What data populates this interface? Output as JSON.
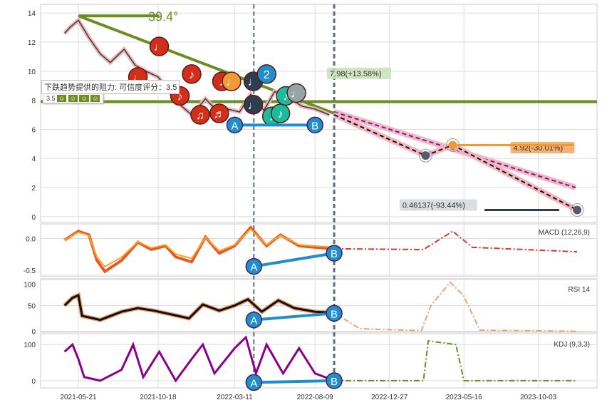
{
  "chart_data": {
    "type": "line",
    "title": "",
    "x_ticks": [
      "2021-05-21",
      "2021-10-18",
      "2022-03-11",
      "2022-08-09",
      "2022-12-27",
      "2023-05-16",
      "2023-10-03"
    ],
    "main": {
      "y_ticks": [
        0,
        2,
        4,
        6,
        8,
        10,
        12,
        14
      ],
      "ylim": [
        -0.4,
        14.6
      ],
      "price": [
        [
          "2021-04-25",
          12.6
        ],
        [
          "2021-05-05",
          13.0
        ],
        [
          "2021-05-21",
          13.5
        ],
        [
          "2021-06-10",
          12.3
        ],
        [
          "2021-07-01",
          11.2
        ],
        [
          "2021-07-20",
          10.6
        ],
        [
          "2021-08-15",
          11.5
        ],
        [
          "2021-09-05",
          10.4
        ],
        [
          "2021-09-25",
          10.0
        ],
        [
          "2021-10-18",
          9.6
        ],
        [
          "2021-11-10",
          8.5
        ],
        [
          "2021-12-01",
          7.6
        ],
        [
          "2021-12-20",
          7.0
        ],
        [
          "2022-01-15",
          8.1
        ],
        [
          "2022-02-05",
          7.3
        ],
        [
          "2022-02-25",
          7.4
        ],
        [
          "2022-03-20",
          7.2
        ],
        [
          "2022-04-10",
          8.4
        ],
        [
          "2022-05-05",
          7.3
        ],
        [
          "2022-05-25",
          8.6
        ],
        [
          "2022-06-20",
          8.2
        ],
        [
          "2022-07-15",
          7.6
        ],
        [
          "2022-08-09",
          7.4
        ],
        [
          "2022-09-05",
          7.0
        ]
      ],
      "projection": [
        [
          "2022-09-14",
          7.0
        ],
        [
          "2023-03-05",
          4.2
        ],
        [
          "2023-04-25",
          4.92
        ],
        [
          "2023-12-15",
          0.46
        ]
      ],
      "channel": [
        [
          "2022-09-14",
          7.2
        ],
        [
          "2023-12-12",
          2.0
        ]
      ],
      "trendline": [
        [
          "2021-05-21",
          13.8
        ],
        [
          "2022-09-14",
          7.1
        ]
      ],
      "resistance_level": 7.9,
      "top_line": [
        [
          "2021-05-21",
          13.8
        ],
        [
          "2021-10-20",
          13.8
        ]
      ],
      "angle_label": "39.4°",
      "annotations": [
        {
          "text": "7.98(+13.58%)",
          "date": "2022-09-14",
          "value": 9.8,
          "color": "#c7e2b5"
        },
        {
          "text": "4.92(-30.01%)",
          "date": "2023-12-10",
          "value": 4.7,
          "color": "#f5a55a"
        },
        {
          "text": "0.46137(-93.44%)",
          "date": "2023-01-15",
          "value": 0.75,
          "color": "#d5d8dc"
        }
      ],
      "tooltip": "下跌趋势提供的阻力: 可信度评分：3.5",
      "rating": "3.5",
      "notes": [
        [
          "2021-09-10",
          9.6,
          "#d22f1b",
          "♩"
        ],
        [
          "2021-10-20",
          11.7,
          "#d22f1b",
          "♩"
        ],
        [
          "2021-11-28",
          8.3,
          "#d22f1b",
          "♪"
        ],
        [
          "2021-12-20",
          9.8,
          "#d22f1b",
          "♪"
        ],
        [
          "2022-01-05",
          7.0,
          "#d22f1b",
          "♫"
        ],
        [
          "2022-02-10",
          7.1,
          "#d22f1b",
          "♬"
        ],
        [
          "2022-02-15",
          9.3,
          "#d22f1b",
          "♪"
        ],
        [
          "2022-03-05",
          9.3,
          "#f09a35",
          "♩"
        ],
        [
          "2022-04-15",
          9.3,
          "#2c3e50",
          "♩"
        ],
        [
          "2022-04-15",
          7.7,
          "#2c3e50",
          "♩"
        ],
        [
          "2022-05-10",
          9.8,
          "#1f8ec9",
          "2"
        ],
        [
          "2022-05-20",
          6.9,
          "#1abc9c",
          "♪"
        ],
        [
          "2022-06-05",
          7.1,
          "#1abc9c",
          "♪"
        ],
        [
          "2022-06-15",
          8.3,
          "#1abc9c",
          "♪"
        ],
        [
          "2022-07-05",
          8.5,
          "#95a5a6",
          "♩"
        ]
      ],
      "A": [
        "2022-03-11",
        6.3
      ],
      "B": [
        "2022-08-09",
        6.3
      ]
    },
    "macd": {
      "label": "MACD (12,26,9)",
      "y_ticks": [
        0.0,
        -0.5
      ],
      "y_tick_labels": [
        "0.0",
        "-0.5"
      ],
      "ylim": [
        -0.52,
        0.2
      ],
      "series": [
        [
          "2021-04-25",
          -0.02
        ],
        [
          "2021-05-21",
          0.1
        ],
        [
          "2021-06-10",
          0.05
        ],
        [
          "2021-06-25",
          -0.3
        ],
        [
          "2021-07-10",
          -0.45
        ],
        [
          "2021-08-10",
          -0.3
        ],
        [
          "2021-09-10",
          -0.05
        ],
        [
          "2021-10-05",
          -0.15
        ],
        [
          "2021-11-01",
          -0.1
        ],
        [
          "2021-11-20",
          -0.25
        ],
        [
          "2021-12-20",
          -0.32
        ],
        [
          "2022-01-15",
          0.02
        ],
        [
          "2022-02-10",
          -0.2
        ],
        [
          "2022-03-11",
          -0.1
        ],
        [
          "2022-04-10",
          0.15
        ],
        [
          "2022-05-10",
          -0.1
        ],
        [
          "2022-06-05",
          0.05
        ],
        [
          "2022-07-10",
          -0.1
        ],
        [
          "2022-08-09",
          -0.12
        ],
        [
          "2022-09-14",
          -0.14
        ],
        [
          "2023-03-01",
          -0.15
        ],
        [
          "2023-04-25",
          0.1
        ],
        [
          "2023-06-01",
          -0.12
        ],
        [
          "2023-12-15",
          -0.18
        ]
      ]
    },
    "rsi": {
      "label": "RSI 14",
      "y_ticks": [
        0,
        50,
        100
      ],
      "ylim": [
        -2,
        102
      ],
      "series": [
        [
          "2021-04-25",
          50
        ],
        [
          "2021-05-10",
          65
        ],
        [
          "2021-05-21",
          70
        ],
        [
          "2021-05-28",
          30
        ],
        [
          "2021-07-01",
          22
        ],
        [
          "2021-08-10",
          38
        ],
        [
          "2021-09-10",
          45
        ],
        [
          "2021-10-10",
          40
        ],
        [
          "2021-11-15",
          32
        ],
        [
          "2021-12-15",
          25
        ],
        [
          "2022-01-10",
          52
        ],
        [
          "2022-02-10",
          40
        ],
        [
          "2022-03-11",
          50
        ],
        [
          "2022-04-05",
          62
        ],
        [
          "2022-05-01",
          38
        ],
        [
          "2022-06-01",
          60
        ],
        [
          "2022-07-01",
          45
        ],
        [
          "2022-08-09",
          38
        ],
        [
          "2022-09-14",
          36
        ],
        [
          "2022-11-01",
          5
        ],
        [
          "2023-02-25",
          1
        ],
        [
          "2023-03-15",
          50
        ],
        [
          "2023-04-20",
          95
        ],
        [
          "2023-05-15",
          70
        ],
        [
          "2023-06-15",
          2
        ],
        [
          "2023-12-15",
          0
        ]
      ]
    },
    "kdj": {
      "label": "KDJ (9,3,3)",
      "y_ticks": [
        0,
        100
      ],
      "ylim": [
        -20,
        130
      ],
      "series": [
        [
          "2021-04-25",
          80
        ],
        [
          "2021-05-10",
          100
        ],
        [
          "2021-05-21",
          60
        ],
        [
          "2021-06-01",
          10
        ],
        [
          "2021-07-01",
          0
        ],
        [
          "2021-08-10",
          30
        ],
        [
          "2021-09-01",
          100
        ],
        [
          "2021-09-20",
          10
        ],
        [
          "2021-10-20",
          80
        ],
        [
          "2021-11-20",
          0
        ],
        [
          "2021-12-20",
          60
        ],
        [
          "2022-01-10",
          100
        ],
        [
          "2022-02-01",
          20
        ],
        [
          "2022-03-11",
          90
        ],
        [
          "2022-04-01",
          120
        ],
        [
          "2022-04-20",
          20
        ],
        [
          "2022-05-10",
          100
        ],
        [
          "2022-06-10",
          20
        ],
        [
          "2022-07-10",
          90
        ],
        [
          "2022-08-09",
          20
        ],
        [
          "2022-09-14",
          0
        ],
        [
          "2023-03-01",
          0
        ],
        [
          "2023-03-10",
          110
        ],
        [
          "2023-05-01",
          100
        ],
        [
          "2023-05-16",
          0
        ],
        [
          "2023-12-15",
          0
        ]
      ]
    }
  },
  "labels": {
    "A": "A",
    "B": "B"
  }
}
